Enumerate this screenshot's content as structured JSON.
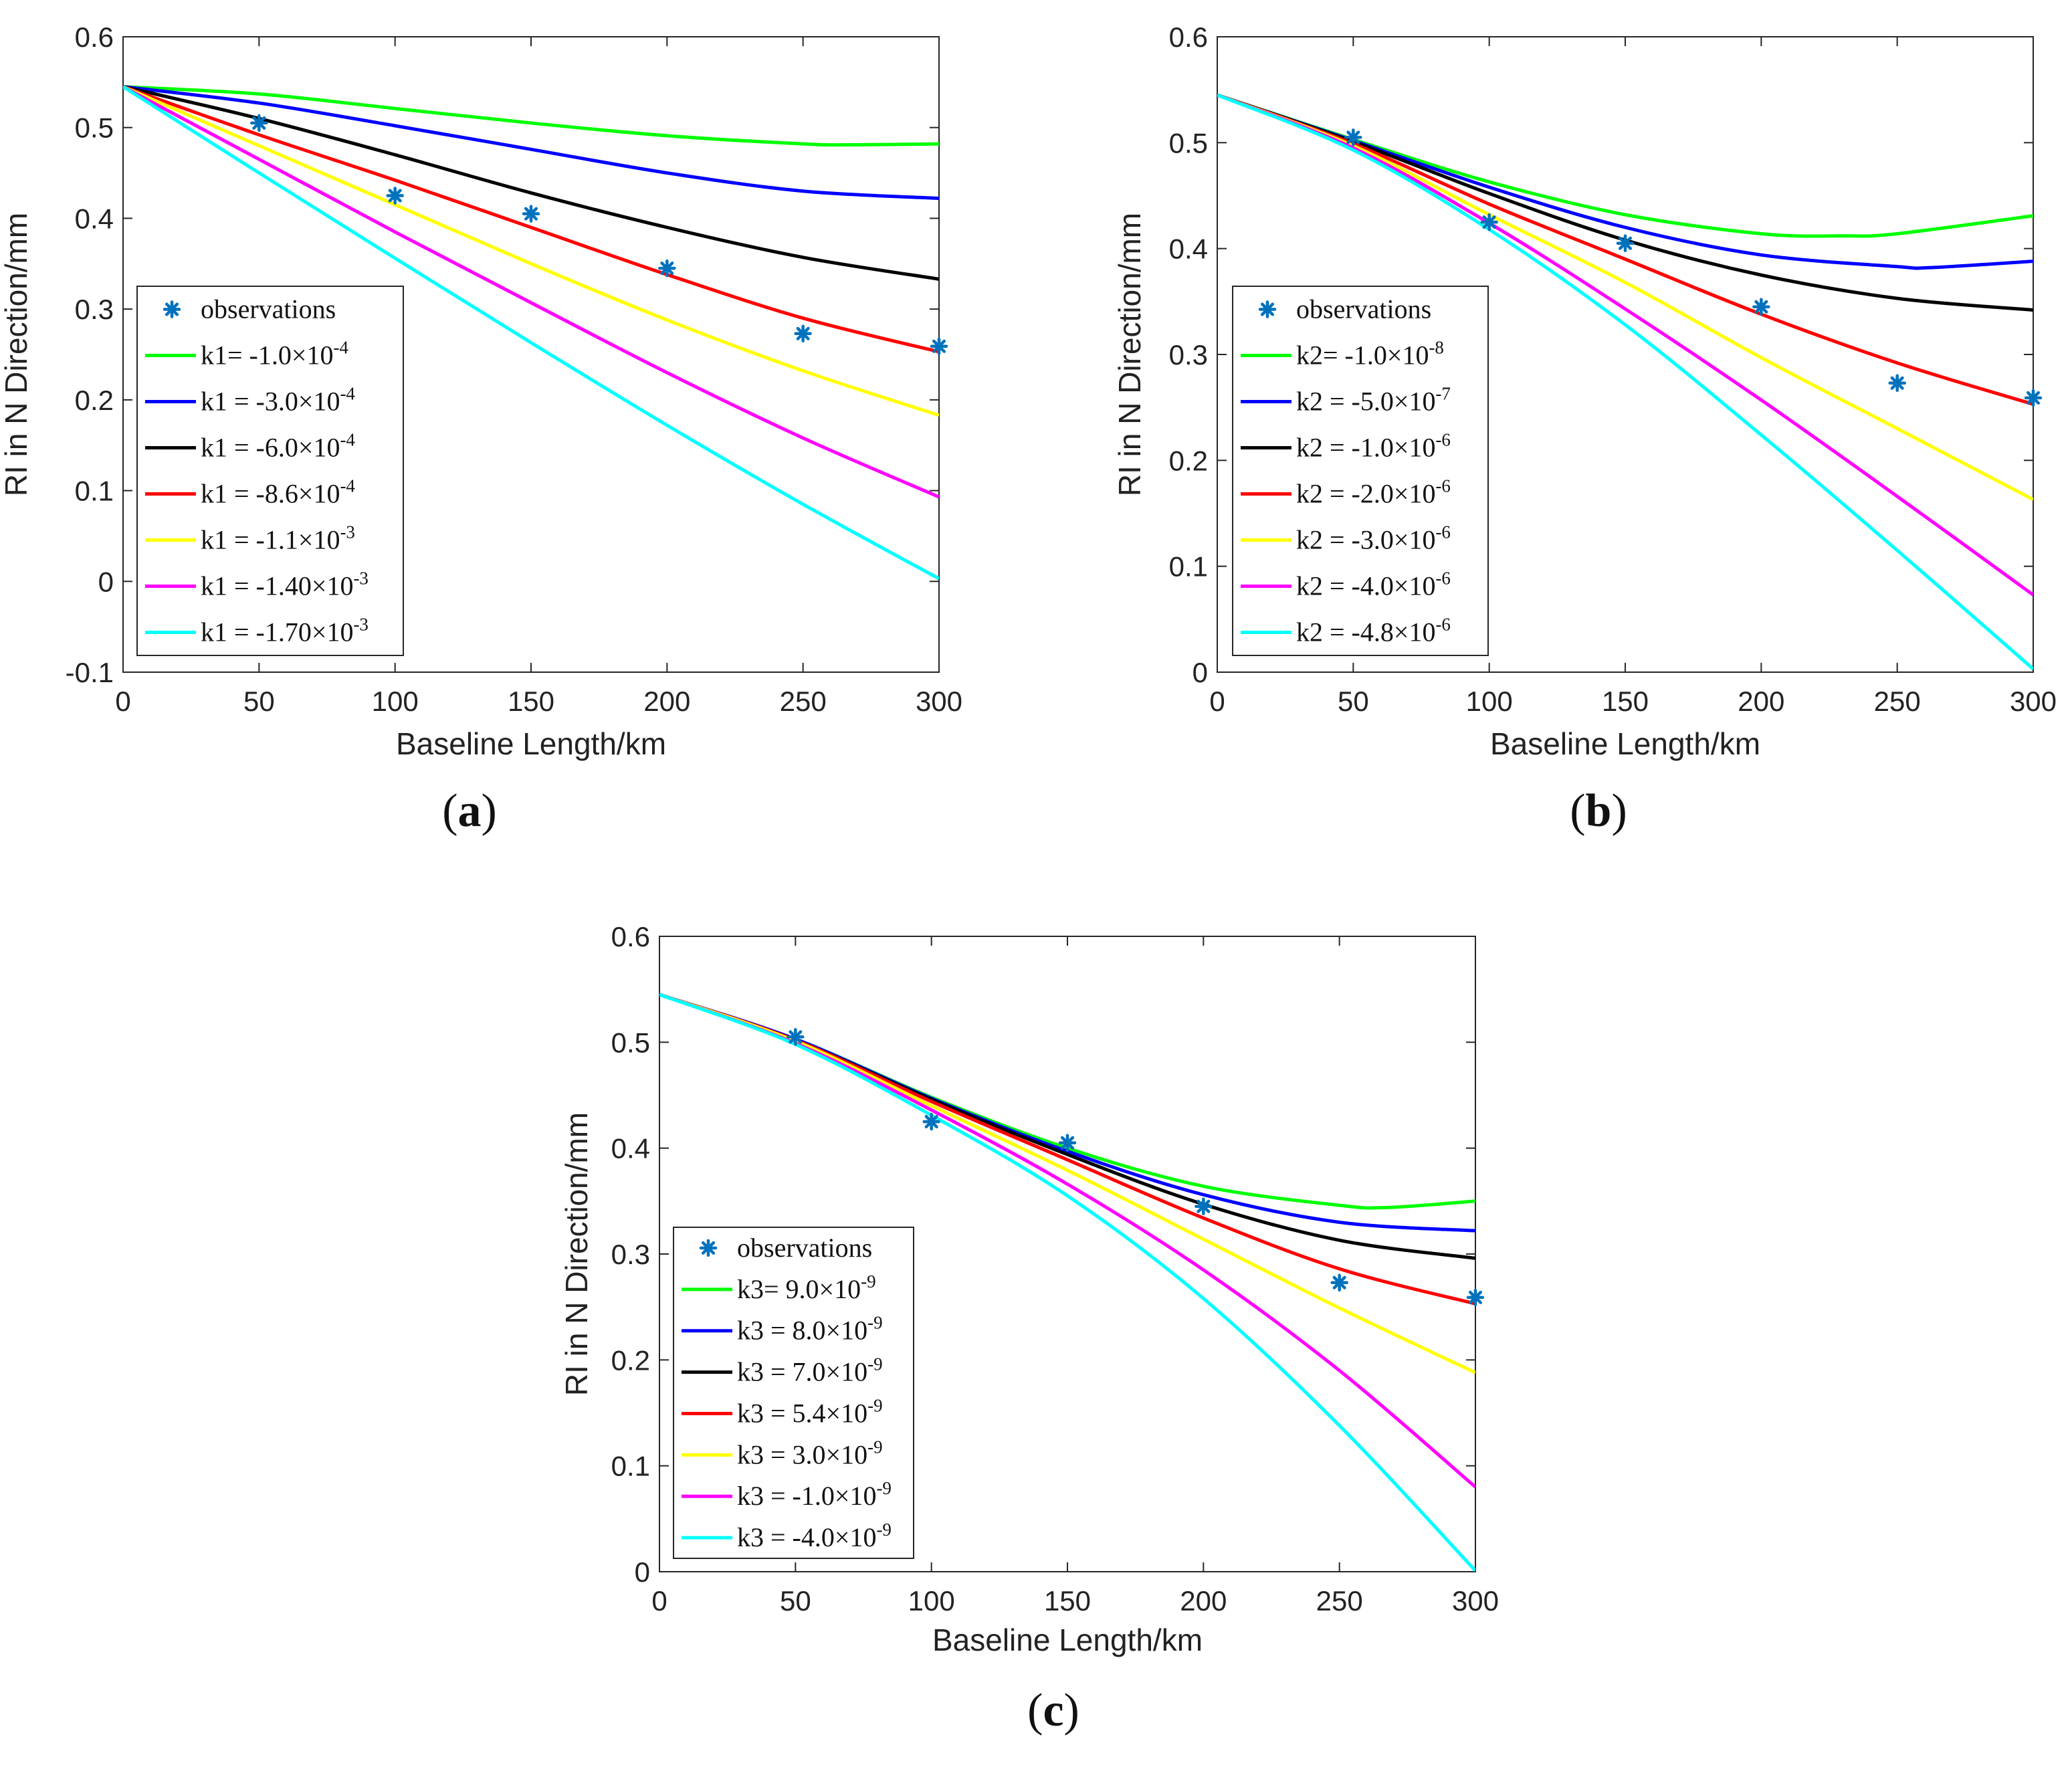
{
  "colors": {
    "green": "#00ff00",
    "blue": "#0000ff",
    "black": "#000000",
    "red": "#ff0000",
    "yellow": "#ffff00",
    "magenta": "#ff00ff",
    "cyan": "#00ffff",
    "observation": "#0072bd"
  },
  "chart_data": [
    {
      "type": "line",
      "panel_label": "a",
      "xlabel": "Baseline Length/km",
      "ylabel": "RI in N Direction/mm",
      "xlim": [
        0,
        300
      ],
      "ylim": [
        -0.1,
        0.6
      ],
      "xticks": [
        "0",
        "50",
        "100",
        "150",
        "200",
        "250",
        "300"
      ],
      "yticks": [
        "-0.1",
        "0",
        "0.1",
        "0.2",
        "0.3",
        "0.4",
        "0.5",
        "0.6"
      ],
      "legend_position": "lower-left",
      "observations": {
        "name": "observations",
        "x": [
          50,
          100,
          150,
          200,
          250,
          300
        ],
        "y": [
          0.505,
          0.425,
          0.405,
          0.345,
          0.273,
          0.259
        ]
      },
      "series": [
        {
          "name": "k1= -1.0×10",
          "exp": "-4",
          "color_key": "green",
          "x": [
            0,
            50,
            100,
            150,
            200,
            250,
            268,
            300
          ],
          "y": [
            0.545,
            0.537,
            0.521,
            0.505,
            0.491,
            0.482,
            0.481,
            0.482
          ]
        },
        {
          "name": "k1 = -3.0×10",
          "exp": "-4",
          "color_key": "blue",
          "x": [
            0,
            50,
            100,
            150,
            200,
            250,
            300
          ],
          "y": [
            0.545,
            0.527,
            0.502,
            0.476,
            0.45,
            0.43,
            0.422
          ]
        },
        {
          "name": "k1 = -6.0×10",
          "exp": "-4",
          "color_key": "black",
          "x": [
            0,
            50,
            100,
            150,
            200,
            250,
            300
          ],
          "y": [
            0.545,
            0.51,
            0.47,
            0.428,
            0.39,
            0.357,
            0.333
          ]
        },
        {
          "name": "k1 = -8.6×10",
          "exp": "-4",
          "color_key": "red",
          "x": [
            0,
            50,
            100,
            150,
            200,
            250,
            300
          ],
          "y": [
            0.545,
            0.492,
            0.442,
            0.39,
            0.338,
            0.29,
            0.253
          ]
        },
        {
          "name": "k1 = -1.1×10",
          "exp": "-3",
          "color_key": "yellow",
          "x": [
            0,
            50,
            100,
            150,
            200,
            250,
            300
          ],
          "y": [
            0.545,
            0.48,
            0.415,
            0.35,
            0.288,
            0.232,
            0.183
          ]
        },
        {
          "name": "k1 = -1.40×10",
          "exp": "-3",
          "color_key": "magenta",
          "x": [
            0,
            50,
            100,
            150,
            200,
            250,
            300
          ],
          "y": [
            0.545,
            0.465,
            0.385,
            0.307,
            0.23,
            0.158,
            0.093
          ]
        },
        {
          "name": "k1 = -1.70×10",
          "exp": "-3",
          "color_key": "cyan",
          "x": [
            0,
            50,
            100,
            150,
            200,
            250,
            300
          ],
          "y": [
            0.545,
            0.45,
            0.356,
            0.263,
            0.172,
            0.085,
            0.003
          ]
        }
      ]
    },
    {
      "type": "line",
      "panel_label": "b",
      "xlabel": "Baseline Length/km",
      "ylabel": "RI in N Direction/mm",
      "xlim": [
        0,
        300
      ],
      "ylim": [
        0,
        0.6
      ],
      "xticks": [
        "0",
        "50",
        "100",
        "150",
        "200",
        "250",
        "300"
      ],
      "yticks": [
        "0",
        "0.1",
        "0.2",
        "0.3",
        "0.4",
        "0.5",
        "0.6"
      ],
      "legend_position": "lower-left",
      "observations": {
        "name": "observations",
        "x": [
          50,
          100,
          150,
          200,
          250,
          300
        ],
        "y": [
          0.505,
          0.425,
          0.405,
          0.345,
          0.273,
          0.259
        ]
      },
      "series": [
        {
          "name": "k2= -1.0×10",
          "exp": "-8",
          "color_key": "green",
          "x": [
            0,
            50,
            100,
            150,
            200,
            230,
            250,
            300
          ],
          "y": [
            0.545,
            0.503,
            0.463,
            0.432,
            0.414,
            0.412,
            0.414,
            0.431
          ]
        },
        {
          "name": "k2 = -5.0×10",
          "exp": "-7",
          "color_key": "blue",
          "x": [
            0,
            50,
            100,
            150,
            200,
            250,
            262,
            300
          ],
          "y": [
            0.545,
            0.502,
            0.458,
            0.42,
            0.394,
            0.383,
            0.382,
            0.388
          ]
        },
        {
          "name": "k2 = -1.0×10",
          "exp": "-6",
          "color_key": "black",
          "x": [
            0,
            50,
            100,
            150,
            200,
            250,
            300
          ],
          "y": [
            0.545,
            0.501,
            0.452,
            0.408,
            0.375,
            0.353,
            0.342
          ]
        },
        {
          "name": "k2 = -2.0×10",
          "exp": "-6",
          "color_key": "red",
          "x": [
            0,
            50,
            100,
            150,
            200,
            250,
            300
          ],
          "y": [
            0.545,
            0.499,
            0.442,
            0.39,
            0.338,
            0.292,
            0.253
          ]
        },
        {
          "name": "k2 = -3.0×10",
          "exp": "-6",
          "color_key": "yellow",
          "x": [
            0,
            50,
            100,
            150,
            200,
            250,
            300
          ],
          "y": [
            0.545,
            0.497,
            0.432,
            0.368,
            0.297,
            0.23,
            0.163
          ]
        },
        {
          "name": "k2 = -4.0×10",
          "exp": "-6",
          "color_key": "magenta",
          "x": [
            0,
            50,
            100,
            150,
            200,
            250,
            300
          ],
          "y": [
            0.545,
            0.495,
            0.424,
            0.343,
            0.257,
            0.166,
            0.073
          ]
        },
        {
          "name": "k2 = -4.8×10",
          "exp": "-6",
          "color_key": "cyan",
          "x": [
            0,
            50,
            100,
            150,
            200,
            250,
            300
          ],
          "y": [
            0.545,
            0.493,
            0.418,
            0.328,
            0.224,
            0.115,
            0.003
          ]
        }
      ]
    },
    {
      "type": "line",
      "panel_label": "c",
      "xlabel": "Baseline Length/km",
      "ylabel": "RI in N Direction/mm",
      "xlim": [
        0,
        300
      ],
      "ylim": [
        0,
        0.6
      ],
      "xticks": [
        "0",
        "50",
        "100",
        "150",
        "200",
        "250",
        "300"
      ],
      "yticks": [
        "0",
        "0.1",
        "0.2",
        "0.3",
        "0.4",
        "0.5",
        "0.6"
      ],
      "legend_position": "lower-left",
      "observations": {
        "name": "observations",
        "x": [
          50,
          100,
          150,
          200,
          250,
          300
        ],
        "y": [
          0.505,
          0.425,
          0.405,
          0.345,
          0.273,
          0.259
        ]
      },
      "series": [
        {
          "name": "k3= 9.0×10",
          "exp": "-9",
          "color_key": "green",
          "x": [
            0,
            50,
            100,
            150,
            200,
            250,
            268,
            300
          ],
          "y": [
            0.545,
            0.503,
            0.448,
            0.4,
            0.364,
            0.346,
            0.344,
            0.35
          ]
        },
        {
          "name": "k3 = 8.0×10",
          "exp": "-9",
          "color_key": "blue",
          "x": [
            0,
            50,
            100,
            150,
            200,
            250,
            300
          ],
          "y": [
            0.545,
            0.503,
            0.447,
            0.397,
            0.356,
            0.33,
            0.322
          ]
        },
        {
          "name": "k3 = 7.0×10",
          "exp": "-9",
          "color_key": "black",
          "x": [
            0,
            50,
            100,
            150,
            200,
            250,
            300
          ],
          "y": [
            0.545,
            0.502,
            0.446,
            0.394,
            0.347,
            0.313,
            0.296
          ]
        },
        {
          "name": "k3 = 5.4×10",
          "exp": "-9",
          "color_key": "red",
          "x": [
            0,
            50,
            100,
            150,
            200,
            250,
            300
          ],
          "y": [
            0.545,
            0.502,
            0.444,
            0.389,
            0.334,
            0.286,
            0.253
          ]
        },
        {
          "name": "k3 = 3.0×10",
          "exp": "-9",
          "color_key": "yellow",
          "x": [
            0,
            50,
            100,
            150,
            200,
            250,
            300
          ],
          "y": [
            0.545,
            0.501,
            0.44,
            0.379,
            0.314,
            0.249,
            0.188
          ]
        },
        {
          "name": "k3 = -1.0×10",
          "exp": "-9",
          "color_key": "magenta",
          "x": [
            0,
            50,
            100,
            150,
            200,
            250,
            300
          ],
          "y": [
            0.545,
            0.499,
            0.436,
            0.366,
            0.285,
            0.19,
            0.08
          ]
        },
        {
          "name": "k3 = -4.0×10",
          "exp": "-9",
          "color_key": "cyan",
          "x": [
            0,
            50,
            100,
            150,
            200,
            250,
            300
          ],
          "y": [
            0.545,
            0.498,
            0.431,
            0.355,
            0.258,
            0.138,
            0.001
          ]
        }
      ]
    }
  ]
}
